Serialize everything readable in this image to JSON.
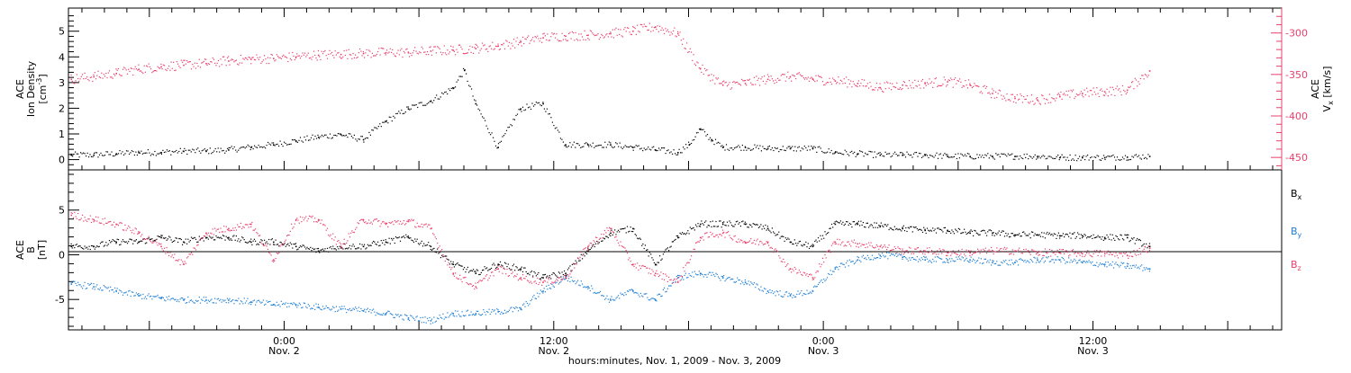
{
  "colors": {
    "axis": "#000000",
    "density": "#000000",
    "velocity": "#e8406c",
    "bx": "#000000",
    "by": "#1f7fd4",
    "bz": "#e8406c"
  },
  "panel_top": {
    "left_label_1": "ACE",
    "left_label_2": "Ion Density",
    "left_label_3": "[cm",
    "left_label_3_exp": "-3",
    "left_label_3_end": "]",
    "right_label_1": "ACE",
    "right_label_2": "V",
    "right_label_2_sub": "x",
    "right_label_2_end": "[km/s]"
  },
  "panel_bottom": {
    "left_label_1": "ACE",
    "left_label_2": "B",
    "left_label_3": "[nT]",
    "legend": [
      {
        "base": "B",
        "sub": "x",
        "color": "#000000"
      },
      {
        "base": "B",
        "sub": "y",
        "color": "#1f7fd4"
      },
      {
        "base": "B",
        "sub": "z",
        "color": "#e8406c"
      }
    ]
  },
  "xaxis": {
    "title": "hours:minutes, Nov.  1, 2009 - Nov.  3, 2009",
    "ticks": [
      {
        "time": "0:00",
        "date": "Nov. 2",
        "hours": 24
      },
      {
        "time": "12:00",
        "date": "Nov. 2",
        "hours": 36
      },
      {
        "time": "0:00",
        "date": "Nov. 3",
        "hours": 48
      },
      {
        "time": "12:00",
        "date": "Nov. 3",
        "hours": 60
      }
    ]
  },
  "chart_data": [
    {
      "type": "scatter",
      "panel": "top",
      "xrange_hours": [
        14.4,
        68.4
      ],
      "ylim_left": [
        -0.4,
        5.9
      ],
      "ylim_right": [
        -465,
        -270
      ],
      "yticks_left": [
        "0",
        "1",
        "2",
        "3",
        "4",
        "5"
      ],
      "yticks_right": [
        "-300",
        "-350",
        "-400",
        "-450"
      ],
      "series": [
        {
          "axis": "left",
          "x": [
            14.5,
            15.5,
            16.5,
            17.5,
            18.5,
            19.5,
            20.5,
            21.5,
            22.5,
            23.5,
            24.5,
            25.5,
            26.5,
            27.5,
            28.5,
            29.5,
            30.5,
            31.5,
            32.0,
            32.5,
            33.5,
            34.5,
            35.5,
            36.5,
            37.5,
            38.5,
            39.5,
            40.5,
            41.5,
            42.0,
            42.5,
            43.0,
            43.5,
            44.5,
            45.5,
            46.5,
            47.5,
            48.5,
            49.5,
            50.5,
            51.5,
            52.5,
            53.5,
            54.5,
            55.5,
            56.5,
            57.5,
            58.5,
            59.5,
            60.5,
            61.5,
            62.5
          ],
          "y": [
            0.2,
            0.2,
            0.25,
            0.3,
            0.3,
            0.35,
            0.35,
            0.4,
            0.5,
            0.6,
            0.75,
            0.9,
            1.0,
            0.8,
            1.5,
            2.0,
            2.3,
            2.8,
            3.5,
            2.2,
            0.5,
            2.0,
            2.2,
            0.6,
            0.6,
            0.6,
            0.5,
            0.4,
            0.3,
            0.6,
            1.2,
            0.8,
            0.5,
            0.5,
            0.45,
            0.45,
            0.45,
            0.3,
            0.25,
            0.2,
            0.2,
            0.2,
            0.15,
            0.15,
            0.15,
            0.15,
            0.15,
            0.1,
            0.1,
            0.1,
            0.12,
            0.15
          ]
        },
        {
          "axis": "right",
          "x": [
            14.5,
            15.5,
            16.5,
            17.5,
            18.5,
            19.5,
            20.5,
            21.5,
            22.5,
            23.5,
            24.5,
            25.5,
            26.5,
            27.5,
            28.5,
            29.5,
            30.5,
            31.5,
            32.5,
            33.5,
            34.5,
            35.5,
            36.5,
            37.5,
            38.5,
            39.5,
            40.5,
            41.5,
            42.5,
            43.5,
            44.5,
            45.5,
            46.5,
            47.5,
            48.5,
            49.5,
            50.5,
            51.5,
            52.5,
            53.5,
            54.5,
            55.5,
            56.5,
            57.5,
            58.5,
            59.5,
            60.5,
            61.5,
            62.5
          ],
          "y": [
            -355,
            -352,
            -348,
            -343,
            -340,
            -338,
            -336,
            -333,
            -331,
            -330,
            -328,
            -326,
            -325,
            -324,
            -323,
            -323,
            -321,
            -320,
            -318,
            -315,
            -310,
            -305,
            -303,
            -302,
            -300,
            -297,
            -292,
            -300,
            -342,
            -362,
            -360,
            -355,
            -352,
            -355,
            -357,
            -360,
            -365,
            -362,
            -360,
            -358,
            -362,
            -372,
            -378,
            -380,
            -376,
            -372,
            -370,
            -368,
            -345
          ]
        }
      ]
    },
    {
      "type": "scatter",
      "panel": "bottom",
      "xrange_hours": [
        14.4,
        68.4
      ],
      "ylim": [
        -8.4,
        9.5
      ],
      "yticks": [
        "5",
        "0",
        "-5"
      ],
      "series": [
        {
          "name": "Bx",
          "x": [
            14.5,
            15.5,
            16.5,
            17.5,
            18.5,
            19.5,
            20.5,
            21.5,
            22.5,
            23.5,
            24.5,
            25.5,
            26.5,
            27.5,
            28.5,
            29.5,
            30.5,
            31.5,
            32.5,
            33.5,
            34.5,
            35.5,
            36.5,
            37.5,
            38.5,
            39.5,
            40.5,
            41.5,
            42.5,
            43.5,
            44.5,
            45.5,
            46.5,
            47.5,
            48.5,
            49.5,
            50.5,
            51.5,
            52.5,
            53.5,
            54.5,
            55.5,
            56.5,
            57.5,
            58.5,
            59.5,
            60.5,
            61.5,
            62.5
          ],
          "y": [
            1.0,
            1.0,
            1.5,
            1.5,
            2.0,
            1.5,
            2.0,
            2.0,
            1.5,
            1.5,
            1.0,
            0.5,
            1.0,
            1.0,
            1.5,
            2.0,
            1.0,
            -1.0,
            -2.0,
            -1.0,
            -1.5,
            -2.5,
            -2.0,
            0.5,
            2.5,
            3.0,
            -1.0,
            2.0,
            3.5,
            3.5,
            3.5,
            3.0,
            1.5,
            1.0,
            3.5,
            3.5,
            3.3,
            3.0,
            2.8,
            2.8,
            2.5,
            2.5,
            2.3,
            2.3,
            2.2,
            2.2,
            2.0,
            2.0,
            1.0
          ]
        },
        {
          "name": "By",
          "x": [
            14.5,
            15.5,
            16.5,
            17.5,
            18.5,
            19.5,
            20.5,
            21.5,
            22.5,
            23.5,
            24.5,
            25.5,
            26.5,
            27.5,
            28.5,
            29.5,
            30.5,
            31.5,
            32.5,
            33.5,
            34.5,
            35.5,
            36.5,
            37.5,
            38.5,
            39.5,
            40.5,
            41.5,
            42.5,
            43.5,
            44.5,
            45.5,
            46.5,
            47.5,
            48.5,
            49.5,
            50.5,
            51.5,
            52.5,
            53.5,
            54.5,
            55.5,
            56.5,
            57.5,
            58.5,
            59.5,
            60.5,
            61.5,
            62.5
          ],
          "y": [
            -3.2,
            -3.5,
            -4.0,
            -4.5,
            -4.8,
            -5.0,
            -5.0,
            -5.0,
            -5.2,
            -5.5,
            -5.5,
            -5.8,
            -6.0,
            -6.2,
            -6.5,
            -7.0,
            -7.3,
            -6.5,
            -6.5,
            -6.3,
            -6.0,
            -4.0,
            -2.5,
            -3.5,
            -5.0,
            -4.0,
            -5.0,
            -2.5,
            -2.0,
            -2.5,
            -3.0,
            -4.0,
            -4.5,
            -4.0,
            -1.5,
            -0.5,
            0.0,
            -0.2,
            -0.5,
            -0.5,
            -0.5,
            -0.8,
            -0.8,
            -0.5,
            -0.5,
            -0.8,
            -1.0,
            -1.2,
            -1.5
          ]
        },
        {
          "name": "Bz",
          "x": [
            14.5,
            15.5,
            16.5,
            17.5,
            18.5,
            19.5,
            20.5,
            21.5,
            22.5,
            23.5,
            24.5,
            25.5,
            26.5,
            27.5,
            28.5,
            29.5,
            30.5,
            31.5,
            32.5,
            33.5,
            34.5,
            35.5,
            36.5,
            37.5,
            38.5,
            39.5,
            40.5,
            41.5,
            42.5,
            43.5,
            44.5,
            45.5,
            46.5,
            47.5,
            48.5,
            49.5,
            50.5,
            51.5,
            52.5,
            53.5,
            54.5,
            55.5,
            56.5,
            57.5,
            58.5,
            59.5,
            60.5,
            61.5,
            62.5
          ],
          "y": [
            4.5,
            4.0,
            3.5,
            2.5,
            1.0,
            -1.0,
            2.5,
            3.0,
            3.5,
            -0.5,
            4.0,
            4.0,
            1.0,
            4.0,
            3.5,
            3.8,
            3.0,
            -2.0,
            -3.5,
            -1.5,
            -2.5,
            -3.0,
            -2.5,
            1.0,
            3.0,
            -1.0,
            -2.0,
            -3.0,
            2.0,
            2.5,
            1.5,
            1.5,
            -1.5,
            -2.5,
            1.5,
            1.3,
            1.0,
            0.5,
            0.5,
            0.3,
            0.3,
            0.5,
            0.5,
            0.3,
            0.3,
            0.2,
            0.2,
            0.0,
            0.8
          ]
        }
      ]
    }
  ]
}
